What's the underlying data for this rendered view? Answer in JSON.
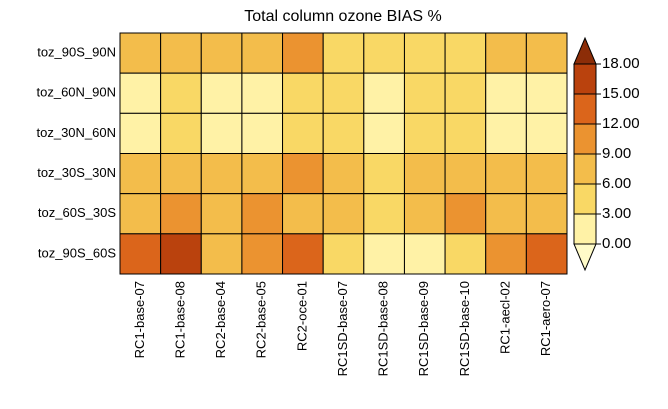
{
  "chart_data": {
    "type": "heatmap",
    "title": "Total column ozone BIAS %",
    "x": [
      "RC1-base-07",
      "RC1-base-08",
      "RC2-base-04",
      "RC2-base-05",
      "RC2-oce-01",
      "RC1SD-base-07",
      "RC1SD-base-08",
      "RC1SD-base-09",
      "RC1SD-base-10",
      "RC1-aecl-02",
      "RC1-aero-07"
    ],
    "y": [
      "toz_90S_90N",
      "toz_60N_90N",
      "toz_30N_60N",
      "toz_30S_30N",
      "toz_60S_30S",
      "toz_90S_60S"
    ],
    "values": [
      [
        7.5,
        7.5,
        7.5,
        7.5,
        10.5,
        5,
        4.5,
        5,
        5.5,
        6.5,
        7
      ],
      [
        2,
        4.5,
        2,
        2.5,
        4.5,
        4,
        2.5,
        4,
        4,
        2.5,
        2
      ],
      [
        2,
        4.5,
        2,
        2.5,
        4.5,
        4,
        2.5,
        4,
        4,
        2.5,
        2.5
      ],
      [
        7,
        7,
        6.5,
        7,
        9.5,
        6.5,
        5,
        6.5,
        6.5,
        6.5,
        7
      ],
      [
        7,
        9.5,
        7,
        9.5,
        7.5,
        6.5,
        5,
        6.5,
        9.5,
        6.5,
        6.5
      ],
      [
        12.5,
        16,
        7,
        9.5,
        12.5,
        4.5,
        2,
        2.5,
        3.5,
        9.5,
        12.5
      ]
    ],
    "colorbar_ticks": [
      {
        "value": 0,
        "label": "0.00"
      },
      {
        "value": 3,
        "label": "3.00"
      },
      {
        "value": 6,
        "label": "6.00"
      },
      {
        "value": 9,
        "label": "9.00"
      },
      {
        "value": 12,
        "label": "12.00"
      },
      {
        "value": 15,
        "label": "15.00"
      },
      {
        "value": 18,
        "label": "18.00"
      }
    ],
    "colors": [
      "#fffbc8",
      "#fff2a6",
      "#f9d865",
      "#f3bd4b",
      "#eb9330",
      "#db651b",
      "#ba420d",
      "#8c2d08"
    ]
  }
}
